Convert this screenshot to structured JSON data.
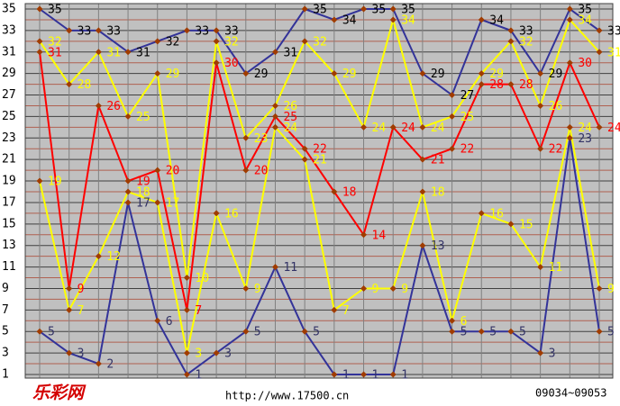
{
  "chart_data": {
    "type": "line",
    "ylim": [
      1,
      35
    ],
    "yticks": [
      1,
      3,
      5,
      7,
      9,
      11,
      13,
      15,
      17,
      19,
      21,
      23,
      25,
      27,
      29,
      31,
      33,
      35
    ],
    "y_minor_ticks": [
      2,
      4,
      6,
      8,
      10,
      12,
      14,
      16,
      18,
      20,
      22,
      24,
      26,
      28,
      30,
      32,
      34
    ],
    "grid": true,
    "marker_color": "#a03c00",
    "series": [
      {
        "color": "#333399",
        "label_color": "#333366",
        "values": [
          5,
          3,
          2,
          17,
          6,
          1,
          3,
          5,
          11,
          5,
          1,
          1,
          1,
          13,
          5,
          5,
          5,
          3,
          23,
          5
        ]
      },
      {
        "color": "#ffff00",
        "label_color": "#ffff00",
        "values": [
          19,
          7,
          12,
          18,
          17,
          3,
          16,
          9,
          24,
          21,
          7,
          9,
          9,
          18,
          6,
          16,
          15,
          11,
          24,
          9
        ]
      },
      {
        "color": "#ff0000",
        "label_color": "#ff0000",
        "values": [
          31,
          9,
          26,
          19,
          20,
          7,
          30,
          20,
          25,
          22,
          18,
          14,
          24,
          21,
          22,
          28,
          28,
          22,
          30,
          24
        ]
      },
      {
        "color": "#ffff00",
        "label_color": "#ffff00",
        "values": [
          32,
          28,
          31,
          25,
          29,
          10,
          32,
          23,
          26,
          32,
          29,
          24,
          34,
          24,
          25,
          29,
          32,
          26,
          34,
          31
        ]
      },
      {
        "color": "#333399",
        "label_color": "#000000",
        "values": [
          35,
          33,
          33,
          31,
          32,
          33,
          33,
          29,
          31,
          35,
          34,
          35,
          35,
          29,
          27,
          34,
          33,
          29,
          35,
          33
        ]
      }
    ],
    "logo": "乐彩网",
    "website": "http://www.17500.cn",
    "period_range": "09034~09053"
  }
}
